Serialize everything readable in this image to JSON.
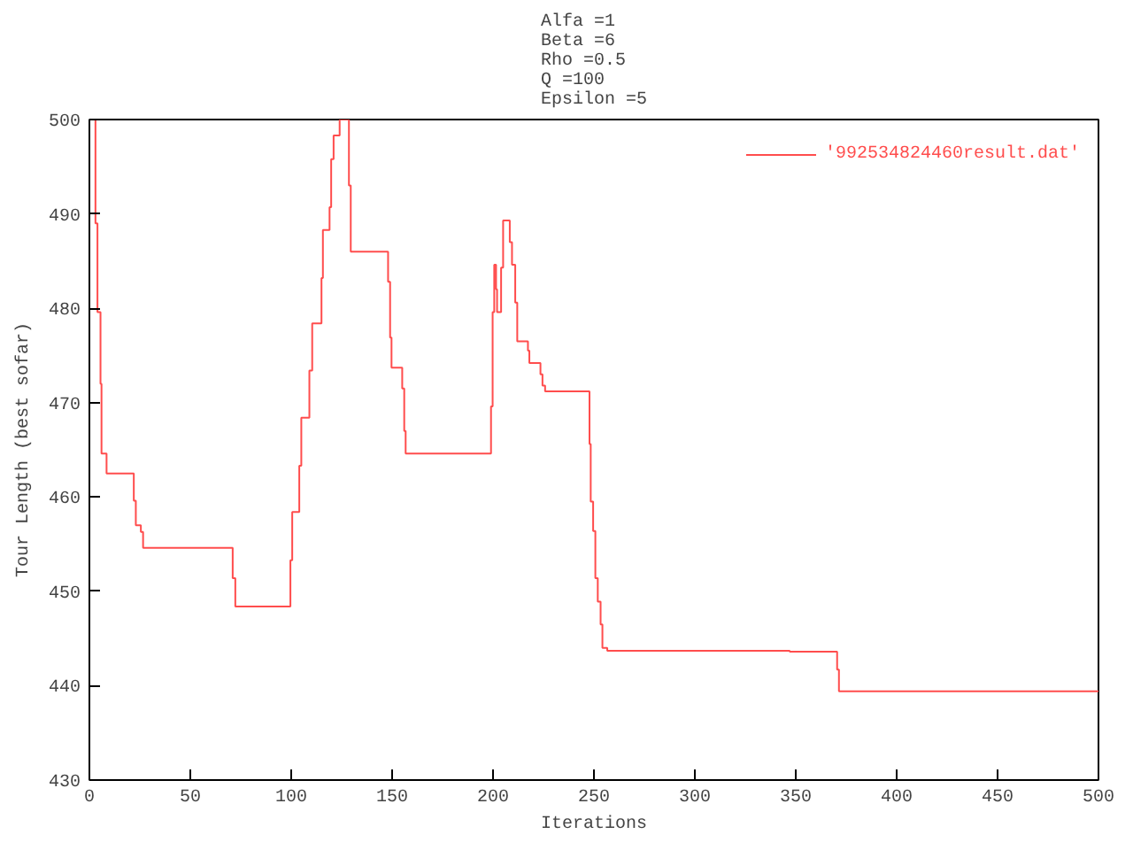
{
  "chart_data": {
    "type": "step",
    "title": "Alfa =1\nBeta =6\nRho =0.5\nQ =100\nEpsilon =5",
    "xlabel": "Iterations",
    "ylabel": "Tour Length (best sofar)",
    "series": [
      {
        "name": "'992534824460result.dat'",
        "color": "#ff4d4d",
        "x": [
          1,
          3,
          4,
          5.5,
          6,
          8.5,
          22,
          23,
          25.5,
          26.6,
          71,
          72.3,
          99.6,
          100.5,
          104,
          105,
          109,
          110.4,
          115,
          115.7,
          119,
          119.8,
          121,
          124,
          128.6,
          129.5,
          148,
          149,
          149.7,
          155,
          156,
          156.7,
          199,
          199.8,
          200.6,
          201.5,
          202,
          204,
          205,
          208.3,
          209.4,
          211,
          212,
          217.3,
          218,
          223.5,
          224.5,
          225.8,
          247.8,
          248.4,
          249.6,
          250.7,
          251.9,
          253.3,
          254.2,
          256.6,
          347,
          370.5,
          371.4,
          500
        ],
        "values": [
          500,
          489,
          479.6,
          472,
          464.6,
          462.5,
          459.6,
          457,
          456.3,
          454.6,
          451.4,
          448.4,
          453.3,
          458.4,
          463.3,
          468.4,
          473.4,
          478.4,
          483.2,
          488.3,
          490.7,
          495.8,
          498.3,
          500,
          493,
          486,
          482.8,
          476.9,
          473.7,
          471.5,
          467,
          464.6,
          469.6,
          479.6,
          484.6,
          482,
          479.6,
          484.3,
          489.3,
          487,
          484.6,
          480.6,
          476.5,
          475.5,
          474.2,
          473,
          471.8,
          471.2,
          465.6,
          459.5,
          456.4,
          451.4,
          448.9,
          446.5,
          444,
          443.7,
          443.6,
          441.7,
          439.4,
          439.4
        ]
      }
    ],
    "xlim": [
      0,
      500
    ],
    "ylim": [
      430,
      500
    ],
    "xticks": [
      0,
      50,
      100,
      150,
      200,
      250,
      300,
      350,
      400,
      450,
      500
    ],
    "yticks": [
      430,
      440,
      450,
      460,
      470,
      480,
      490,
      500
    ],
    "grid": false,
    "legend": "top right"
  }
}
